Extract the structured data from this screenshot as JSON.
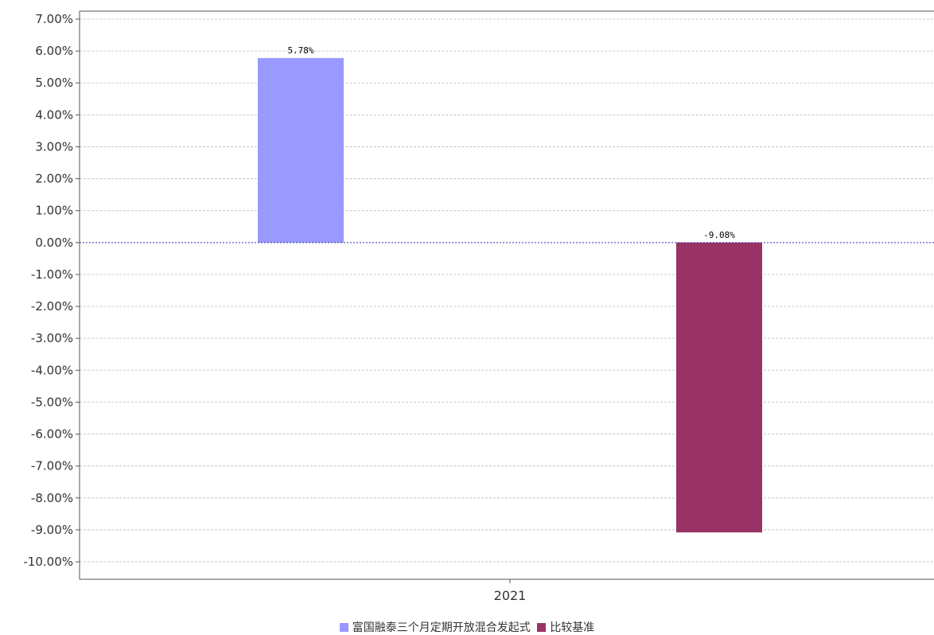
{
  "chart_data": {
    "type": "bar",
    "categories": [
      "2021"
    ],
    "series": [
      {
        "name": "富国融泰三个月定期开放混合发起式",
        "values": [
          5.78
        ],
        "color": "#9999ff",
        "label": "5.78%"
      },
      {
        "name": "比较基准",
        "values": [
          -9.08
        ],
        "color": "#993366",
        "label": "-9.08%"
      }
    ],
    "ylim": [
      -10,
      7
    ],
    "yticks": [
      7,
      6,
      5,
      4,
      3,
      2,
      1,
      0,
      -1,
      -2,
      -3,
      -4,
      -5,
      -6,
      -7,
      -8,
      -9,
      -10
    ],
    "ytick_labels": [
      "7.00%",
      "6.00%",
      "5.00%",
      "4.00%",
      "3.00%",
      "2.00%",
      "1.00%",
      "0.00%",
      "-1.00%",
      "-2.00%",
      "-3.00%",
      "-4.00%",
      "-5.00%",
      "-6.00%",
      "-7.00%",
      "-8.00%",
      "-9.00%",
      "-10.00%"
    ],
    "grid": true,
    "legend_position": "bottom",
    "title": "",
    "xlabel": "",
    "ylabel": ""
  }
}
